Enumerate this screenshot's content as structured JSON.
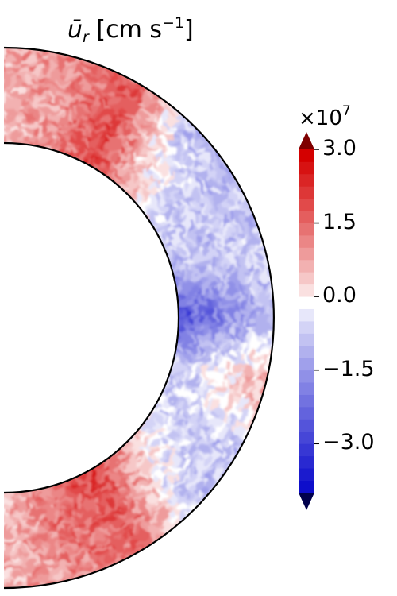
{
  "chart_data": {
    "type": "heatmap",
    "title": {
      "symbol": "ū",
      "subscript": "r",
      "unit_text": "[cm s",
      "unit_exponent": "−1",
      "unit_close": "]"
    },
    "geometry": "half-annulus (right half of a spherical shell, polar angle 0 to 180 degrees)",
    "colormap": "seismic (blue-white-red), discrete contour levels",
    "colorbar": {
      "multiplier_base": "×10",
      "multiplier_exponent": "7",
      "ticks": [
        {
          "value": 3.0,
          "label": "3.0"
        },
        {
          "value": 1.5,
          "label": "1.5"
        },
        {
          "value": 0.0,
          "label": "0.0"
        },
        {
          "value": -1.5,
          "label": "−1.5"
        },
        {
          "value": -3.0,
          "label": "−3.0"
        }
      ],
      "range": [
        -4.0,
        3.0
      ],
      "extend": "both"
    },
    "field_summary": {
      "angles_deg": [
        0,
        15,
        30,
        45,
        60,
        75,
        90,
        105,
        120,
        135,
        150,
        165,
        180
      ],
      "inner_shell_values": [
        0.6,
        1.0,
        2.2,
        0.8,
        -0.6,
        -0.8,
        -2.8,
        -0.9,
        -0.5,
        0.5,
        2.2,
        1.6,
        0.6
      ],
      "outer_shell_values": [
        0.8,
        1.2,
        1.8,
        -1.0,
        -0.9,
        -0.5,
        -0.6,
        1.0,
        -0.7,
        -0.8,
        1.6,
        1.2,
        0.7
      ]
    },
    "colors": {
      "positive": "#d40000",
      "negative": "#0000c8",
      "zero": "#ffffff",
      "max_extend": "#7f0000",
      "min_extend": "#00004c"
    }
  }
}
